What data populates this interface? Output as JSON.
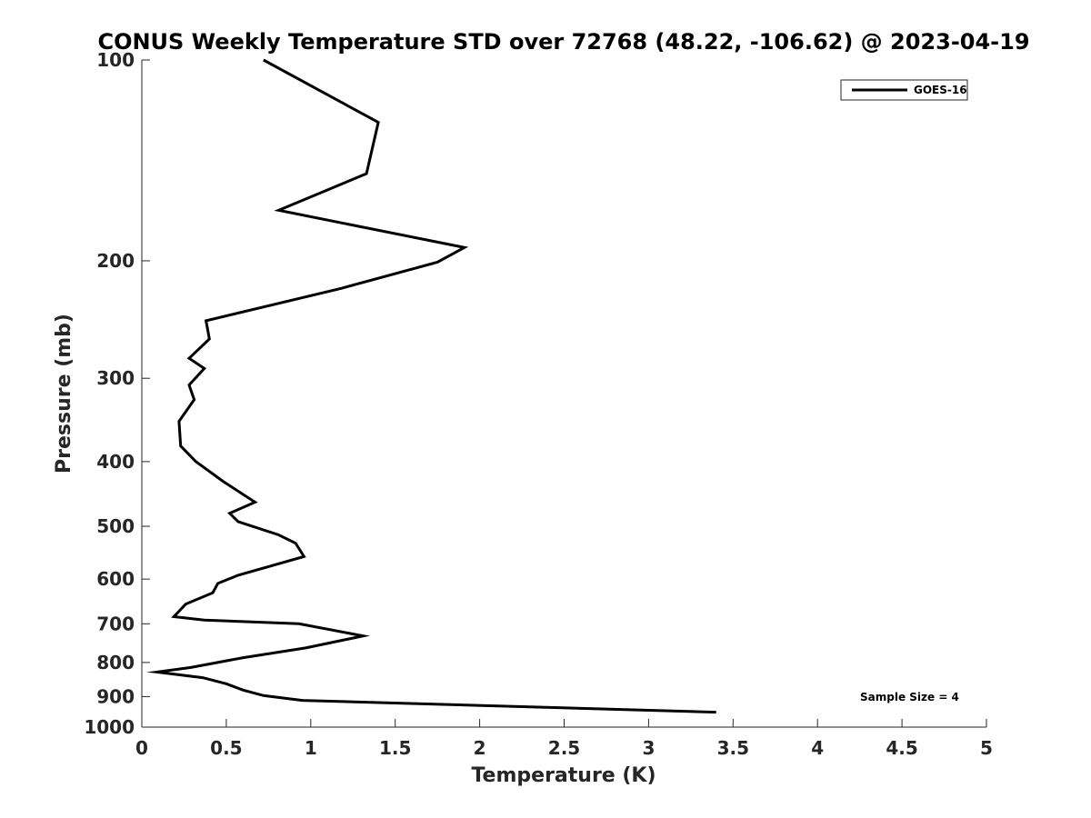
{
  "chart_data": {
    "type": "line",
    "title": "CONUS Weekly Temperature STD over 72768 (48.22, -106.62) @ 2023-04-19",
    "xlabel": "Temperature (K)",
    "ylabel": "Pressure (mb)",
    "xlim": [
      0,
      5
    ],
    "ylim": [
      100,
      1000
    ],
    "yscale": "log",
    "yreversed": true,
    "x_ticks": [
      "0",
      "0.5",
      "1",
      "1.5",
      "2",
      "2.5",
      "3",
      "3.5",
      "4",
      "4.5",
      "5"
    ],
    "y_ticks": [
      "100",
      "200",
      "300",
      "400",
      "500",
      "600",
      "700",
      "800",
      "900",
      "1000"
    ],
    "grid": false,
    "legend_position": "top-right",
    "annotation": "Sample Size = 4",
    "series": [
      {
        "name": "GOES-16",
        "color": "#000000",
        "x": [
          0.72,
          1.4,
          1.33,
          0.81,
          1.91,
          1.75,
          1.18,
          0.38,
          0.4,
          0.28,
          0.37,
          0.28,
          0.31,
          0.22,
          0.23,
          0.32,
          0.48,
          0.67,
          0.52,
          0.57,
          0.81,
          0.91,
          0.96,
          0.57,
          0.45,
          0.42,
          0.26,
          0.19,
          0.37,
          0.93,
          1.31,
          0.97,
          0.6,
          0.29,
          0.09,
          0.36,
          0.5,
          0.6,
          0.72,
          0.95,
          3.4
        ],
        "y": [
          100,
          124,
          148,
          168,
          191,
          201,
          220,
          246,
          262,
          280,
          290,
          307,
          323,
          348,
          379,
          400,
          428,
          460,
          478,
          492,
          515,
          530,
          555,
          592,
          609,
          629,
          654,
          683,
          691,
          700,
          730,
          761,
          787,
          814,
          827,
          843,
          861,
          880,
          897,
          912,
          950
        ]
      }
    ]
  }
}
